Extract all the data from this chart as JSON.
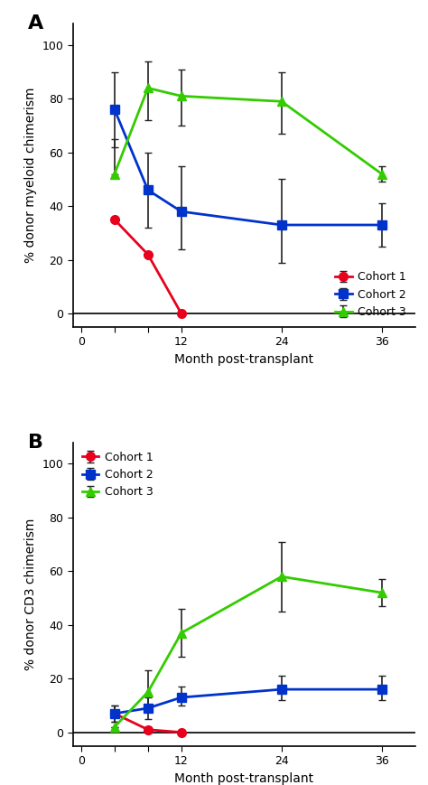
{
  "panel_A": {
    "title": "A",
    "ylabel": "% donor myeloid chimerism",
    "xlabel": "Month post-transplant",
    "x_ticks": [
      0,
      4,
      8,
      12,
      24,
      36
    ],
    "x_tick_labels": [
      "0",
      "",
      "",
      "12",
      "24",
      "36"
    ],
    "xlim": [
      -1,
      40
    ],
    "ylim": [
      -5,
      108
    ],
    "y_ticks": [
      0,
      20,
      40,
      60,
      80,
      100
    ],
    "cohort1": {
      "label": "Cohort 1",
      "color": "#e8001d",
      "marker": "o",
      "x": [
        4,
        8,
        12
      ],
      "y": [
        35,
        22,
        0
      ],
      "yerr_lo": [
        0,
        0,
        0
      ],
      "yerr_hi": [
        0,
        0,
        0
      ]
    },
    "cohort2": {
      "label": "Cohort 2",
      "color": "#0033cc",
      "marker": "s",
      "x": [
        4,
        8,
        12,
        24,
        36
      ],
      "y": [
        76,
        46,
        38,
        33,
        33
      ],
      "yerr_lo": [
        14,
        14,
        14,
        14,
        8
      ],
      "yerr_hi": [
        14,
        14,
        17,
        17,
        8
      ]
    },
    "cohort3": {
      "label": "Cohort 3",
      "color": "#33cc00",
      "marker": "^",
      "x": [
        4,
        8,
        12,
        24,
        36
      ],
      "y": [
        52,
        84,
        81,
        79,
        52
      ],
      "yerr_lo": [
        0,
        12,
        11,
        12,
        3
      ],
      "yerr_hi": [
        13,
        10,
        10,
        11,
        3
      ]
    },
    "legend_loc": "lower right",
    "legend_bbox": null
  },
  "panel_B": {
    "title": "B",
    "ylabel": "% donor CD3 chimerism",
    "xlabel": "Month post-transplant",
    "x_ticks": [
      0,
      4,
      8,
      12,
      24,
      36
    ],
    "x_tick_labels": [
      "0",
      "",
      "",
      "12",
      "24",
      "36"
    ],
    "xlim": [
      -1,
      40
    ],
    "ylim": [
      -5,
      108
    ],
    "y_ticks": [
      0,
      20,
      40,
      60,
      80,
      100
    ],
    "cohort1": {
      "label": "Cohort 1",
      "color": "#e8001d",
      "marker": "o",
      "x": [
        4,
        8,
        12
      ],
      "y": [
        7,
        1,
        0
      ],
      "yerr_lo": [
        3,
        1,
        0
      ],
      "yerr_hi": [
        3,
        1,
        0
      ]
    },
    "cohort2": {
      "label": "Cohort 2",
      "color": "#0033cc",
      "marker": "s",
      "x": [
        4,
        8,
        12,
        24,
        36
      ],
      "y": [
        7,
        9,
        13,
        16,
        16
      ],
      "yerr_lo": [
        3,
        4,
        3,
        4,
        4
      ],
      "yerr_hi": [
        3,
        4,
        4,
        5,
        5
      ]
    },
    "cohort3": {
      "label": "Cohort 3",
      "color": "#33cc00",
      "marker": "^",
      "x": [
        4,
        8,
        12,
        24,
        36
      ],
      "y": [
        2,
        15,
        37,
        58,
        52
      ],
      "yerr_lo": [
        0,
        5,
        9,
        13,
        5
      ],
      "yerr_hi": [
        0,
        8,
        9,
        13,
        5
      ]
    },
    "legend_loc": "upper left",
    "legend_bbox": null
  },
  "bg_color": "#ffffff",
  "linewidth": 2.0,
  "markersize": 7,
  "capsize": 3,
  "elinewidth": 1.2,
  "ecolor": "#222222",
  "title_fontsize": 16,
  "label_fontsize": 10,
  "tick_fontsize": 9,
  "legend_fontsize": 9
}
